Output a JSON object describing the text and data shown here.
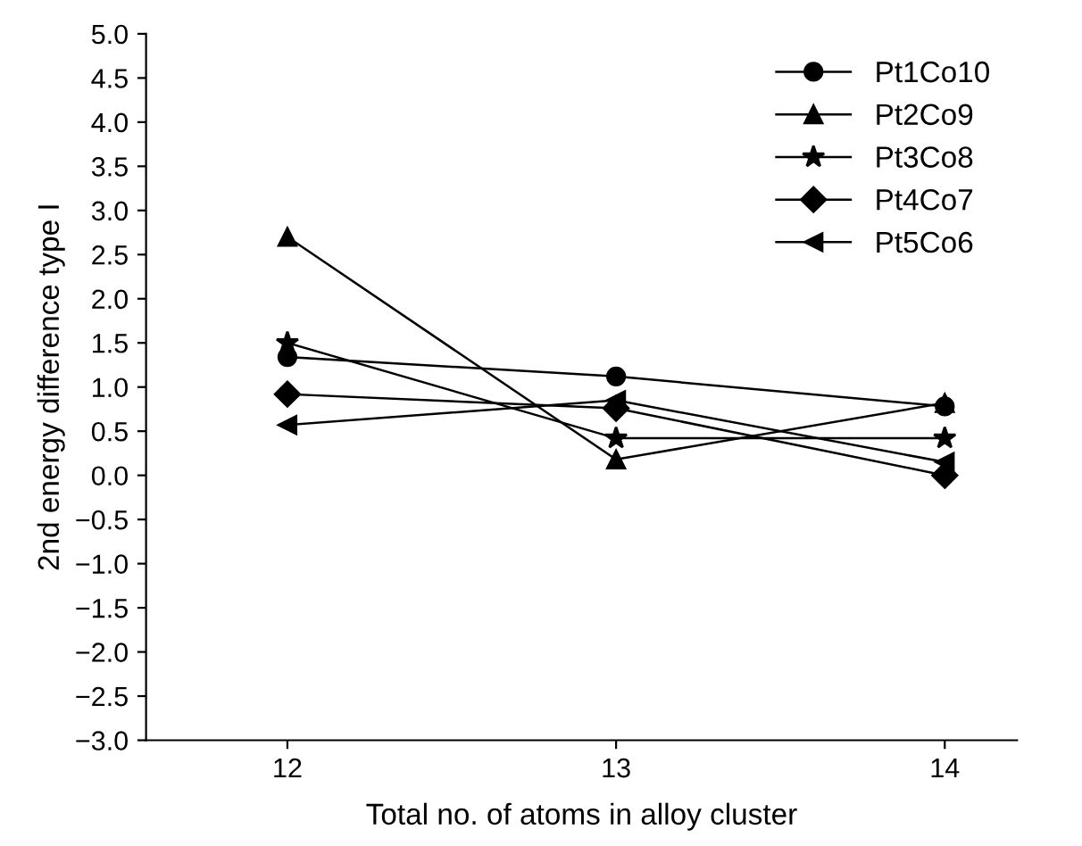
{
  "chart_data": {
    "type": "line",
    "xlabel": "Total no. of atoms in alloy cluster",
    "ylabel": "2nd energy difference type I",
    "x": [
      12,
      13,
      14
    ],
    "xlim": [
      11.57,
      14.22
    ],
    "xticks": [
      12,
      13,
      14
    ],
    "ylim": [
      -3.0,
      5.0
    ],
    "yticks": [
      {
        "value": -3,
        "label": "−3.0"
      },
      {
        "value": -2.5,
        "label": "−2.5"
      },
      {
        "value": -2,
        "label": "−2.0"
      },
      {
        "value": -1.5,
        "label": "−1.5"
      },
      {
        "value": -1,
        "label": "−1.0"
      },
      {
        "value": -0.5,
        "label": "−0.5"
      },
      {
        "value": 0,
        "label": "0.0"
      },
      {
        "value": 0.5,
        "label": "0.5"
      },
      {
        "value": 1,
        "label": "1.0"
      },
      {
        "value": 1.5,
        "label": "1.5"
      },
      {
        "value": 2,
        "label": "2.0"
      },
      {
        "value": 2.5,
        "label": "2.5"
      },
      {
        "value": 3,
        "label": "3.0"
      },
      {
        "value": 3.5,
        "label": "3.5"
      },
      {
        "value": 4,
        "label": "4.0"
      },
      {
        "value": 4.5,
        "label": "4.5"
      },
      {
        "value": 5,
        "label": "5.0"
      }
    ],
    "grid": false,
    "legend": "top right",
    "line_style": "solid",
    "series": [
      {
        "name": "Pt1Co10",
        "color": "#000000",
        "marker": "circle",
        "values": [
          1.34,
          1.12,
          0.78
        ]
      },
      {
        "name": "Pt2Co9",
        "color": "#000000",
        "marker": "triangle",
        "values": [
          2.7,
          0.18,
          0.82
        ]
      },
      {
        "name": "Pt3Co8",
        "color": "#000000",
        "marker": "star",
        "values": [
          1.5,
          0.42,
          0.42
        ]
      },
      {
        "name": "Pt4Co7",
        "color": "#000000",
        "marker": "diamond",
        "values": [
          0.92,
          0.76,
          0.0
        ]
      },
      {
        "name": "Pt5Co6",
        "color": "#000000",
        "marker": "triangle_left",
        "values": [
          0.57,
          0.85,
          0.15
        ]
      }
    ]
  }
}
